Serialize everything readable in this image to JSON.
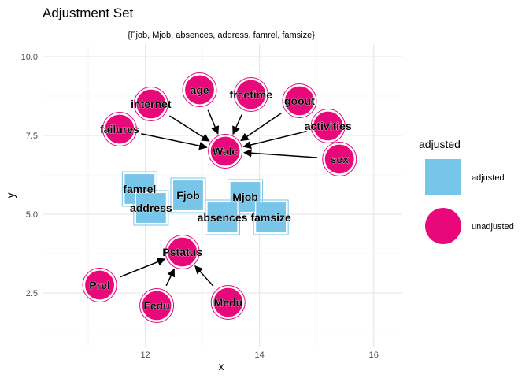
{
  "title": "Adjustment Set",
  "subtitle": "{Fjob, Mjob, absences, address, famrel, famsize}",
  "x_axis": {
    "label": "x",
    "ticks": [
      12,
      14,
      16
    ],
    "range": [
      10.2,
      16.5
    ]
  },
  "y_axis": {
    "label": "y",
    "ticks": [
      2.5,
      5.0,
      7.5,
      10.0
    ],
    "tick_labels": [
      "2.5",
      "5.0",
      "7.5",
      "10.0"
    ],
    "range": [
      0.8,
      10.4
    ]
  },
  "legend": {
    "title": "adjusted",
    "items": [
      {
        "label": "adjusted",
        "shape": "square",
        "color": "#77c5e8"
      },
      {
        "label": "unadjusted",
        "shape": "circle",
        "color": "#e8087a"
      }
    ]
  },
  "colors": {
    "adjusted": "#77c5e8",
    "unadjusted": "#e8087a",
    "edge": "#000000"
  },
  "nodes": [
    {
      "name": "Walc",
      "x": 13.4,
      "y": 7.0,
      "adjusted": false
    },
    {
      "name": "internet",
      "x": 12.1,
      "y": 8.5,
      "adjusted": false
    },
    {
      "name": "age",
      "x": 12.95,
      "y": 8.95,
      "adjusted": false
    },
    {
      "name": "freetime",
      "x": 13.85,
      "y": 8.8,
      "adjusted": false
    },
    {
      "name": "goout",
      "x": 14.7,
      "y": 8.6,
      "adjusted": false
    },
    {
      "name": "failures",
      "x": 11.55,
      "y": 7.7,
      "adjusted": false
    },
    {
      "name": "activities",
      "x": 15.2,
      "y": 7.8,
      "adjusted": false
    },
    {
      "name": "sex",
      "x": 15.4,
      "y": 6.75,
      "adjusted": false
    },
    {
      "name": "famrel",
      "x": 11.9,
      "y": 5.8,
      "adjusted": true
    },
    {
      "name": "address",
      "x": 12.1,
      "y": 5.2,
      "adjusted": true
    },
    {
      "name": "Fjob",
      "x": 12.75,
      "y": 5.6,
      "adjusted": true
    },
    {
      "name": "Mjob",
      "x": 13.75,
      "y": 5.55,
      "adjusted": true
    },
    {
      "name": "absences",
      "x": 13.35,
      "y": 4.9,
      "adjusted": true
    },
    {
      "name": "famsize",
      "x": 14.2,
      "y": 4.9,
      "adjusted": true
    },
    {
      "name": "Pstatus",
      "x": 12.65,
      "y": 3.8,
      "adjusted": false
    },
    {
      "name": "Prel",
      "x": 11.2,
      "y": 2.75,
      "adjusted": false
    },
    {
      "name": "Fedu",
      "x": 12.2,
      "y": 2.1,
      "adjusted": false
    },
    {
      "name": "Medu",
      "x": 13.45,
      "y": 2.2,
      "adjusted": false
    }
  ],
  "edges": [
    {
      "from": "internet",
      "to": "Walc"
    },
    {
      "from": "age",
      "to": "Walc"
    },
    {
      "from": "freetime",
      "to": "Walc"
    },
    {
      "from": "goout",
      "to": "Walc"
    },
    {
      "from": "failures",
      "to": "Walc"
    },
    {
      "from": "activities",
      "to": "Walc"
    },
    {
      "from": "sex",
      "to": "Walc"
    },
    {
      "from": "Prel",
      "to": "Pstatus"
    },
    {
      "from": "Fedu",
      "to": "Pstatus"
    },
    {
      "from": "Medu",
      "to": "Pstatus"
    }
  ]
}
